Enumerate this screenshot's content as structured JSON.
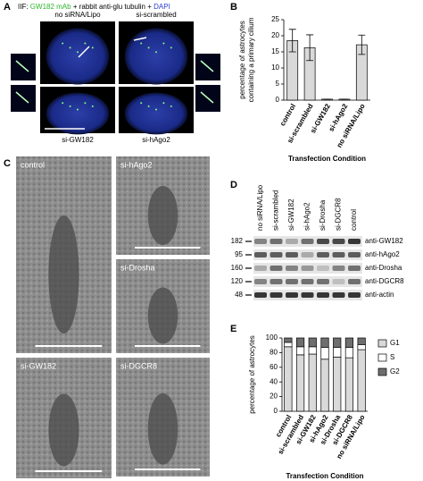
{
  "panels": {
    "A": {
      "label": "A",
      "stain": [
        "IIF:",
        "GW182 mAb",
        "+ rabbit anti-glu tubulin +",
        "DAPI"
      ],
      "images": [
        "no siRNA/Lipo",
        "si-scrambled",
        "si-GW182",
        "si-hAgo2"
      ]
    },
    "B": {
      "label": "B"
    },
    "C": {
      "label": "C",
      "images": [
        "control",
        "si-hAgo2",
        "si-Drosha",
        "si-GW182",
        "si-DGCR8"
      ]
    },
    "D": {
      "label": "D",
      "lanes": [
        "no siRNA/Lipo",
        "si-scrambled",
        "si-GW182",
        "si-hAgo2",
        "si-Drosha",
        "si-DGCR8",
        "control"
      ],
      "markers": [
        "182",
        "95",
        "160",
        "120",
        "48"
      ],
      "antibodies": [
        "anti-GW182",
        "anti-hAgo2",
        "anti-Drosha",
        "anti-DGCR8",
        "anti-actin"
      ]
    },
    "E": {
      "label": "E"
    }
  },
  "chart_data": [
    {
      "type": "bar",
      "color": "#d9d9d9",
      "y_label": [
        "percentage of astrocytes",
        "containing a primary cilium"
      ],
      "x_label": "Transfection Condition",
      "categories": [
        "control",
        "si-scrambled",
        "si-GW182",
        "si-hAgo2",
        "no siRNA/Lipo"
      ],
      "values": [
        18.5,
        16.3,
        0.3,
        0.3,
        17.2
      ],
      "errors": [
        3.5,
        4,
        0,
        0,
        3
      ],
      "ylim": [
        0,
        25
      ],
      "yticks": [
        0,
        5,
        10,
        15,
        20,
        25
      ],
      "grid": false
    },
    {
      "type": "stacked_bar",
      "y_label": "percentage of astrocytes",
      "x_label": "Transfection Condition",
      "categories": [
        "control",
        "si-scrambled",
        "si-GW182",
        "si-hAgo2",
        "si-Drosha",
        "si-DGCR8",
        "no siRNA/Lipo"
      ],
      "series": [
        {
          "name": "G1",
          "color": "#d9d9d9",
          "values": [
            88,
            77,
            78,
            71,
            74,
            73,
            84
          ]
        },
        {
          "name": "S",
          "color": "#ffffff",
          "values": [
            6,
            11,
            10,
            16,
            13,
            14,
            7
          ]
        },
        {
          "name": "G2",
          "color": "#6e6e6e",
          "values": [
            6,
            12,
            12,
            13,
            13,
            13,
            9
          ]
        }
      ],
      "ylim": [
        0,
        100
      ],
      "yticks": [
        0,
        20,
        40,
        60,
        80,
        100
      ],
      "grid": false,
      "legend": "right"
    }
  ]
}
